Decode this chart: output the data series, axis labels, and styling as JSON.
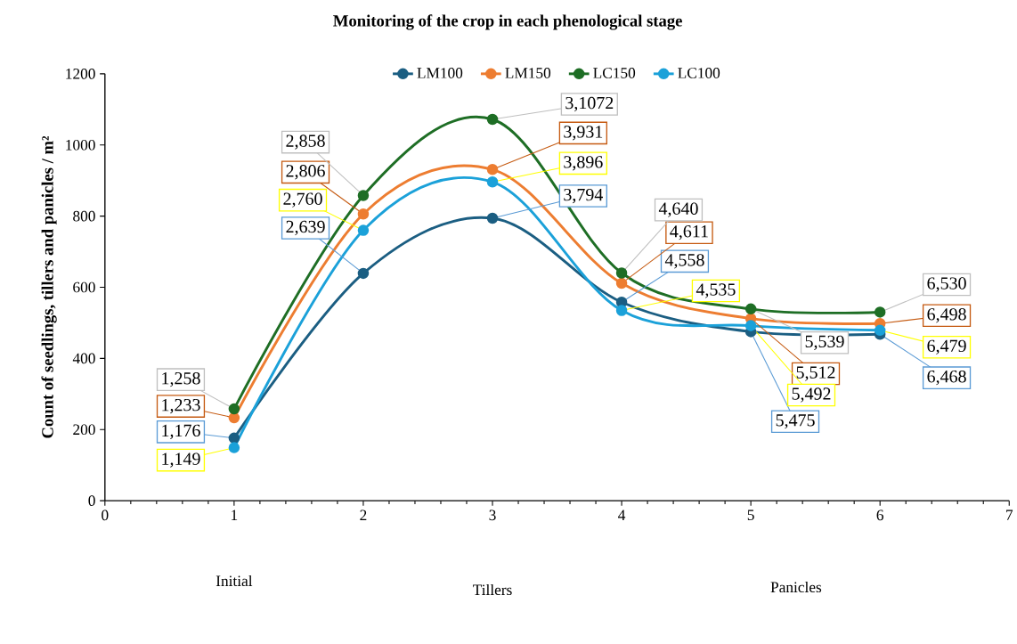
{
  "chart_data": {
    "type": "line",
    "title": "Monitoring of the crop in each phenological stage",
    "ylabel": "Count of seedlings, tillers and panicles / m²",
    "x": [
      1,
      2,
      3,
      4,
      5,
      6
    ],
    "xlim": [
      0,
      7
    ],
    "xticks": [
      0,
      1,
      2,
      3,
      4,
      5,
      6,
      7
    ],
    "ylim": [
      0,
      1200
    ],
    "yticks": [
      0,
      200,
      400,
      600,
      800,
      1000,
      1200
    ],
    "series": [
      {
        "name": "LM100",
        "color": "#1b5e82",
        "values": [
          176,
          639,
          794,
          558,
          475,
          468
        ]
      },
      {
        "name": "LM150",
        "color": "#ed7d31",
        "values": [
          233,
          806,
          931,
          611,
          512,
          498
        ]
      },
      {
        "name": "LC150",
        "color": "#1e6e25",
        "values": [
          258,
          858,
          1072,
          640,
          539,
          530
        ]
      },
      {
        "name": "LC100",
        "color": "#1ba1d9",
        "values": [
          149,
          760,
          896,
          535,
          492,
          479
        ]
      }
    ],
    "annotations": [
      {
        "text": "1,176",
        "x": 1,
        "y": 176
      },
      {
        "text": "2,639",
        "x": 2,
        "y": 639
      },
      {
        "text": "3,794",
        "x": 3,
        "y": 794
      },
      {
        "text": "4,558",
        "x": 4,
        "y": 558
      },
      {
        "text": "5,475",
        "x": 5,
        "y": 475
      },
      {
        "text": "6,468",
        "x": 6,
        "y": 468
      },
      {
        "text": "1,233",
        "x": 1,
        "y": 233
      },
      {
        "text": "2,806",
        "x": 2,
        "y": 806
      },
      {
        "text": "3,931",
        "x": 3,
        "y": 931
      },
      {
        "text": "4,611",
        "x": 4,
        "y": 611
      },
      {
        "text": "5,512",
        "x": 5,
        "y": 512
      },
      {
        "text": "6,498",
        "x": 6,
        "y": 498
      },
      {
        "text": "1,258",
        "x": 1,
        "y": 258
      },
      {
        "text": "2,858",
        "x": 2,
        "y": 858
      },
      {
        "text": "3,1072",
        "x": 3,
        "y": 1072
      },
      {
        "text": "4,640",
        "x": 4,
        "y": 640
      },
      {
        "text": "5,539",
        "x": 5,
        "y": 539
      },
      {
        "text": "6,530",
        "x": 6,
        "y": 530
      },
      {
        "text": "1,149",
        "x": 1,
        "y": 149
      },
      {
        "text": "2,760",
        "x": 2,
        "y": 760
      },
      {
        "text": "3,896",
        "x": 3,
        "y": 896
      },
      {
        "text": "4,535",
        "x": 4,
        "y": 535
      },
      {
        "text": "5,492",
        "x": 5,
        "y": 492
      },
      {
        "text": "6,479",
        "x": 6,
        "y": 479
      },
      "Initial",
      "Tillers",
      "Panicles"
    ],
    "legend": "top",
    "marker": "circle",
    "line_style": "solid",
    "grid": false
  }
}
